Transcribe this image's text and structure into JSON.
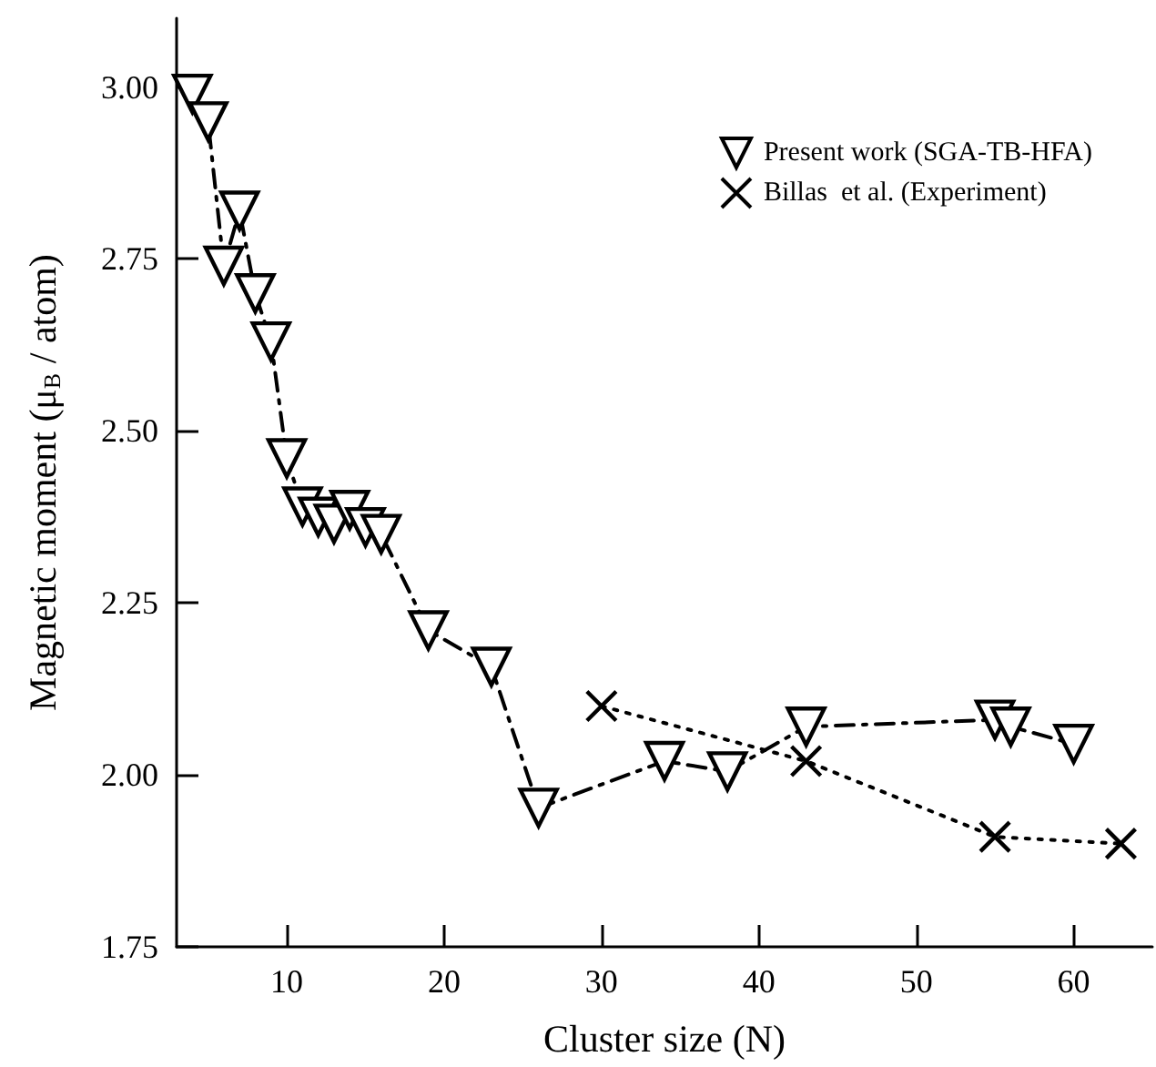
{
  "chart_data": {
    "type": "line",
    "xlabel": "Cluster size (N)",
    "ylabel": "Magnetic moment (μ$_{B}$ / atom)",
    "xlim": [
      3,
      65
    ],
    "xticks": [
      10,
      20,
      30,
      40,
      50,
      60
    ],
    "ylim": [
      1.75,
      3.1
    ],
    "yticks": [
      {
        "value": 1.75,
        "label": "1.75"
      },
      {
        "value": 2,
        "label": "2.00"
      },
      {
        "value": 2.25,
        "label": "2.25"
      },
      {
        "value": 2.5,
        "label": "2.50"
      },
      {
        "value": 2.75,
        "label": "2.75"
      },
      {
        "value": 3,
        "label": "3.00"
      }
    ],
    "grid": false,
    "legend": "top right",
    "series": [
      {
        "name": "Present work (SGA-TB-HFA)",
        "color": "#000000",
        "marker": "triangle",
        "line_style": "dashdot",
        "x": [
          4,
          5,
          6,
          7,
          8,
          9,
          10,
          11,
          12,
          13,
          14,
          15,
          16,
          19,
          23,
          26,
          34,
          38,
          43,
          55,
          56,
          60
        ],
        "values": [
          2.99,
          2.95,
          2.74,
          2.82,
          2.7,
          2.63,
          2.46,
          2.39,
          2.375,
          2.365,
          2.385,
          2.36,
          2.35,
          2.21,
          2.157,
          1.952,
          2.02,
          2.005,
          2.07,
          2.08,
          2.07,
          2.045
        ]
      },
      {
        "name": "Billas  et al. (Experiment)",
        "color": "#000000",
        "marker": "cross",
        "line_style": "dotted",
        "x": [
          30,
          43,
          55,
          63
        ],
        "values": [
          2.1,
          2.02,
          1.91,
          1.9
        ]
      }
    ]
  }
}
